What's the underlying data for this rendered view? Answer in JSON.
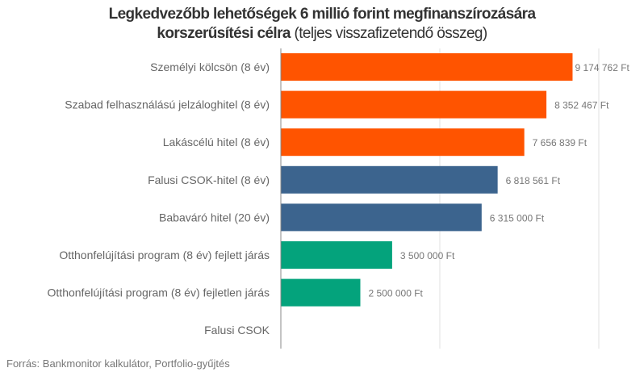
{
  "chart_data": {
    "type": "bar",
    "orientation": "horizontal",
    "title_bold_line1": "Legkedvezőbb lehetőségek 6 millió forint megfinanszírozására",
    "title_bold_line2": "korszerűsítési célra",
    "title_regular": "(teljes visszafizetendő összeg)",
    "categories": [
      "Személyi kölcsön (8 év)",
      "Szabad felhasználású jelzáloghitel (8 év)",
      "Lakáscélú hitel (8 év)",
      "Falusi CSOK-hitel (8 év)",
      "Babaváró hitel (20 év)",
      "Otthonfelújítási program (8 év) fejlett járás",
      "Otthonfelújítási program (8 év) fejletlen járás",
      "Falusi CSOK"
    ],
    "values": [
      9174762,
      8352467,
      7656839,
      6818561,
      6315000,
      3500000,
      2500000,
      null
    ],
    "data_labels": [
      "9 174 762 Ft",
      "8 352 467 Ft",
      "7 656 839 Ft",
      "6 818 561 Ft",
      "6 315 000 Ft",
      "3 500 000 Ft",
      "2 500 000 Ft",
      ""
    ],
    "colors": [
      "#ff5400",
      "#ff5400",
      "#ff5400",
      "#3c648e",
      "#3c648e",
      "#04a37c",
      "#04a37c",
      "#04a37c"
    ],
    "xlim": [
      0,
      10000000
    ],
    "gridlines_at": [
      5000000,
      10000000
    ],
    "grid": true,
    "xlabel": "",
    "ylabel": ""
  },
  "source": "Forrás: Bankmonitor kalkulátor, Portfolio-gyűjtés"
}
